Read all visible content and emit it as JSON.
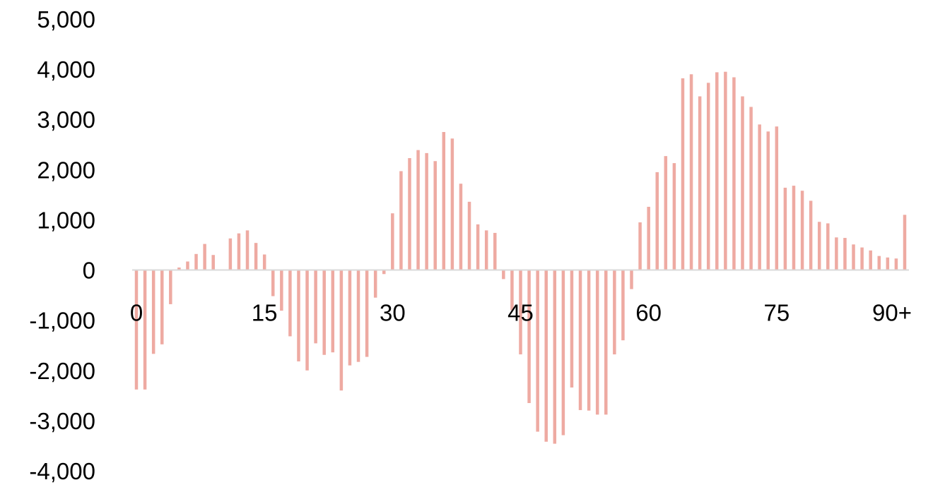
{
  "chart_data": {
    "type": "bar",
    "title": "",
    "xlabel": "",
    "ylabel": "",
    "ylim": [
      -4000,
      5000
    ],
    "y_ticks": [
      5000,
      4000,
      3000,
      2000,
      1000,
      0,
      -1000,
      -2000,
      -3000,
      -4000
    ],
    "y_tick_labels": [
      "5,000",
      "4,000",
      "3,000",
      "2,000",
      "1,000",
      "0",
      "-1,000",
      "-2,000",
      "-3,000",
      "-4,000"
    ],
    "x_tick_labels": [
      {
        "index": 0,
        "label": "0"
      },
      {
        "index": 15,
        "label": "15"
      },
      {
        "index": 30,
        "label": "30"
      },
      {
        "index": 45,
        "label": "45"
      },
      {
        "index": 60,
        "label": "60"
      },
      {
        "index": 75,
        "label": "75"
      },
      {
        "index": 90,
        "label": "90+"
      }
    ],
    "x_tick_label_position": "below zero line",
    "grid": false,
    "legend": "none",
    "bar_color": "#eeaaa2",
    "axis_color": "#d9d9d9",
    "values": [
      -2380,
      -2380,
      -1670,
      -1480,
      -680,
      50,
      170,
      320,
      520,
      300,
      0,
      630,
      730,
      790,
      540,
      310,
      -520,
      -810,
      -1320,
      -1820,
      -2000,
      -1460,
      -1690,
      -1640,
      -2400,
      -1900,
      -1830,
      -1730,
      -550,
      -80,
      1130,
      1970,
      2230,
      2390,
      2330,
      2170,
      2750,
      2620,
      1720,
      1360,
      910,
      790,
      740,
      -180,
      -800,
      -1680,
      -2650,
      -3220,
      -3420,
      -3460,
      -3290,
      -2340,
      -2790,
      -2800,
      -2880,
      -2880,
      -1680,
      -1400,
      -380,
      950,
      1260,
      1950,
      2270,
      2130,
      3820,
      3900,
      3460,
      3730,
      3940,
      3950,
      3840,
      3460,
      3250,
      2900,
      2760,
      2860,
      1640,
      1680,
      1580,
      1380,
      960,
      930,
      650,
      640,
      510,
      450,
      390,
      280,
      250,
      230,
      1100
    ]
  }
}
